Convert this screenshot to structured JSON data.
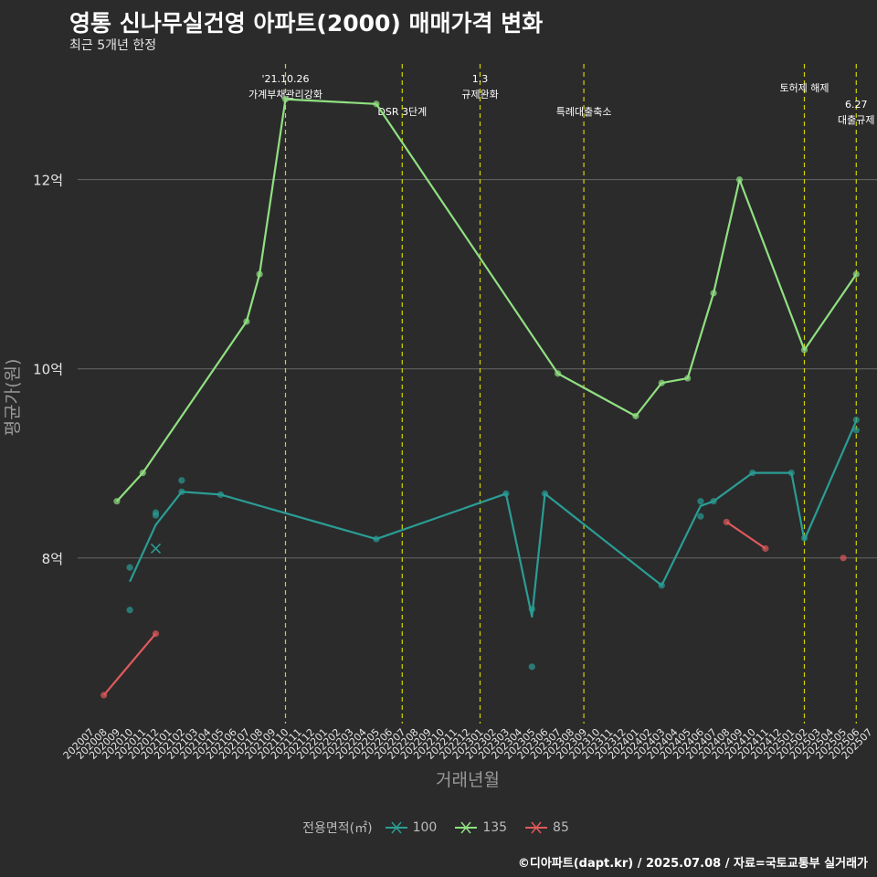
{
  "title": "영통 신나무실건영 아파트(2000) 매매가격 변화",
  "subtitle": "최근 5개년 한정",
  "caption": "©디아파트(dapt.kr) / 2025.07.08 / 자료=국토교통부 실거래가",
  "legend_title": "전용면적(㎡)",
  "chart_data": {
    "type": "line",
    "xlabel": "거래년월",
    "ylabel": "평균가(원)",
    "categories": [
      "202007",
      "202008",
      "202009",
      "202010",
      "202011",
      "202012",
      "202101",
      "202102",
      "202103",
      "202104",
      "202105",
      "202106",
      "202107",
      "202108",
      "202109",
      "202110",
      "202111",
      "202112",
      "202201",
      "202202",
      "202203",
      "202204",
      "202205",
      "202206",
      "202207",
      "202208",
      "202209",
      "202210",
      "202211",
      "202212",
      "202301",
      "202302",
      "202303",
      "202304",
      "202305",
      "202306",
      "202307",
      "202308",
      "202309",
      "202310",
      "202311",
      "202312",
      "202401",
      "202402",
      "202403",
      "202404",
      "202405",
      "202406",
      "202407",
      "202408",
      "202409",
      "202410",
      "202411",
      "202412",
      "202501",
      "202502",
      "202503",
      "202504",
      "202505",
      "202506",
      "202507"
    ],
    "y_ticks": [
      80000,
      100000,
      120000
    ],
    "y_tick_labels": [
      "8억",
      "10억",
      "12억"
    ],
    "ylim": [
      62500,
      133000
    ],
    "grid": true,
    "series": [
      {
        "name": "100",
        "color": "#2a9d94",
        "line": [
          [
            "202010",
            77500
          ],
          [
            "202012",
            83500
          ],
          [
            "202102",
            87000
          ],
          [
            "202105",
            86700
          ],
          [
            "202205",
            82000
          ],
          [
            "202303",
            86800
          ],
          [
            "202305",
            73800
          ],
          [
            "202306",
            86800
          ],
          [
            "202403",
            77100
          ],
          [
            "202406",
            85500
          ],
          [
            "202407",
            86000
          ],
          [
            "202410",
            89000
          ],
          [
            "202501",
            89000
          ],
          [
            "202502",
            81900
          ],
          [
            "202506",
            94500
          ]
        ],
        "points": [
          [
            "202010",
            79000
          ],
          [
            "202010",
            74500
          ],
          [
            "202012",
            84500
          ],
          [
            "202012",
            84800
          ],
          [
            "202102",
            88200
          ],
          [
            "202102",
            87000
          ],
          [
            "202105",
            86700
          ],
          [
            "202205",
            82000
          ],
          [
            "202303",
            86800
          ],
          [
            "202305",
            68500
          ],
          [
            "202305",
            74600
          ],
          [
            "202306",
            86800
          ],
          [
            "202403",
            77100
          ],
          [
            "202406",
            84400
          ],
          [
            "202406",
            86000
          ],
          [
            "202407",
            86000
          ],
          [
            "202410",
            89000
          ],
          [
            "202501",
            89000
          ],
          [
            "202502",
            82100
          ],
          [
            "202506",
            94600
          ],
          [
            "202506",
            93500
          ]
        ],
        "cross": [
          [
            "202012",
            81000
          ]
        ]
      },
      {
        "name": "135",
        "color": "#90e080",
        "line": [
          [
            "202009",
            86000
          ],
          [
            "202011",
            89000
          ],
          [
            "202107",
            105000
          ],
          [
            "202108",
            110000
          ],
          [
            "202110",
            128500
          ],
          [
            "202205",
            128000
          ],
          [
            "202307",
            99500
          ],
          [
            "202401",
            95000
          ],
          [
            "202403",
            98500
          ],
          [
            "202405",
            99000
          ],
          [
            "202407",
            108000
          ],
          [
            "202409",
            120000
          ],
          [
            "202502",
            102000
          ],
          [
            "202506",
            110000
          ]
        ],
        "points": [
          [
            "202009",
            86000
          ],
          [
            "202011",
            89000
          ],
          [
            "202107",
            105000
          ],
          [
            "202108",
            110000
          ],
          [
            "202110",
            128500
          ],
          [
            "202205",
            128000
          ],
          [
            "202307",
            99500
          ],
          [
            "202401",
            95000
          ],
          [
            "202403",
            98500
          ],
          [
            "202405",
            99000
          ],
          [
            "202407",
            108000
          ],
          [
            "202409",
            120000
          ],
          [
            "202502",
            102000
          ],
          [
            "202506",
            110000
          ]
        ]
      },
      {
        "name": "85",
        "color": "#e05a5a",
        "segments": [
          [
            [
              "202008",
              65500
            ],
            [
              "202012",
              72000
            ]
          ],
          [
            [
              "202408",
              83800
            ],
            [
              "202411",
              81000
            ]
          ]
        ],
        "points": [
          [
            "202008",
            65500
          ],
          [
            "202012",
            72000
          ],
          [
            "202408",
            83800
          ],
          [
            "202411",
            81000
          ],
          [
            "202505",
            80000
          ]
        ]
      }
    ],
    "events": [
      {
        "at": "202110",
        "lines": [
          "'21.10.26",
          "가계부채관리강화"
        ],
        "row": 0
      },
      {
        "at": "202207",
        "lines": [
          "DSR 3단계"
        ],
        "row": 1
      },
      {
        "at": "202301",
        "lines": [
          "1.3",
          "규제완화"
        ],
        "row": 0
      },
      {
        "at": "202309",
        "lines": [
          "특례대출축소"
        ],
        "row": 1
      },
      {
        "at": "202502",
        "lines": [
          "토허제 해제"
        ],
        "row": 2
      },
      {
        "at": "202506",
        "lines": [
          "6.27",
          "대출규제"
        ],
        "row": 3
      }
    ],
    "event_color": "#d4d400"
  }
}
